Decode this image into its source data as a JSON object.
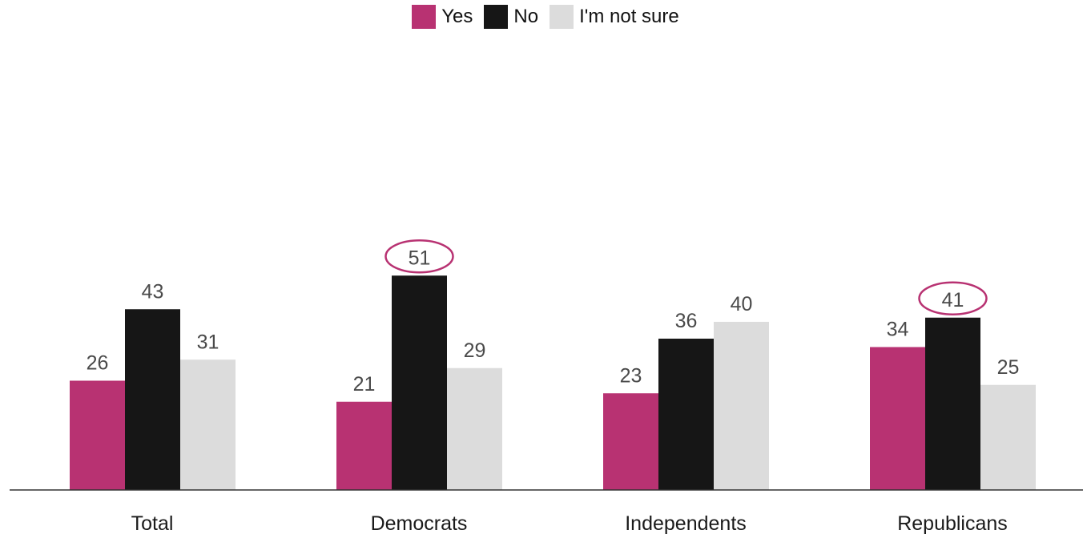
{
  "chart_data": {
    "type": "bar",
    "categories": [
      "Total",
      "Democrats",
      "Independents",
      "Republicans"
    ],
    "series": [
      {
        "name": "Yes",
        "values": [
          26,
          21,
          23,
          34
        ],
        "color": "#b83272"
      },
      {
        "name": "No",
        "values": [
          43,
          51,
          36,
          41
        ],
        "color": "#161616"
      },
      {
        "name": "I'm not sure",
        "values": [
          31,
          29,
          40,
          25
        ],
        "color": "#dcdcdc"
      }
    ],
    "highlighted": [
      {
        "category": "Democrats",
        "series": "No"
      },
      {
        "category": "Republicans",
        "series": "No"
      }
    ],
    "highlight_color": "#b83272",
    "title": "",
    "xlabel": "",
    "ylabel": "",
    "ylim": [
      0,
      51
    ],
    "legend_position": "top-center",
    "grid": false
  }
}
